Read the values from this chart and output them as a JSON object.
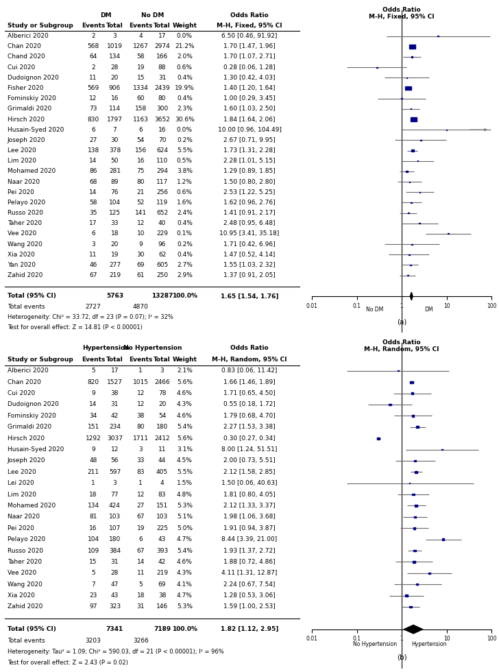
{
  "panel_a": {
    "col_headers_row1": [
      "",
      "DM",
      "",
      "No DM",
      "",
      "",
      "Odds Ratio",
      ""
    ],
    "col_headers_row2": [
      "Study or Subgroup",
      "Events",
      "Total",
      "Events",
      "Total",
      "Weight",
      "M-H, Fixed, 95% CI",
      ""
    ],
    "right_header": "Odds Ratio\nM-H, Fixed, 95% CI",
    "studies": [
      {
        "name": "Alberici 2020",
        "e1": "2",
        "n1": "3",
        "e2": "4",
        "n2": "17",
        "weight": "0.0%",
        "or": 6.5,
        "ci_lo": 0.46,
        "ci_hi": 91.92,
        "ci_str": "6.50 [0.46, 91.92]"
      },
      {
        "name": "Chan 2020",
        "e1": "568",
        "n1": "1019",
        "e2": "1267",
        "n2": "2974",
        "weight": "21.2%",
        "or": 1.7,
        "ci_lo": 1.47,
        "ci_hi": 1.96,
        "ci_str": "1.70 [1.47, 1.96]"
      },
      {
        "name": "Chand 2020",
        "e1": "64",
        "n1": "134",
        "e2": "58",
        "n2": "166",
        "weight": "2.0%",
        "or": 1.7,
        "ci_lo": 1.07,
        "ci_hi": 2.71,
        "ci_str": "1.70 [1.07, 2.71]"
      },
      {
        "name": "Cui 2020",
        "e1": "2",
        "n1": "28",
        "e2": "19",
        "n2": "88",
        "weight": "0.6%",
        "or": 0.28,
        "ci_lo": 0.06,
        "ci_hi": 1.28,
        "ci_str": "0.28 [0.06, 1.28]"
      },
      {
        "name": "Dudoignon 2020",
        "e1": "11",
        "n1": "20",
        "e2": "15",
        "n2": "31",
        "weight": "0.4%",
        "or": 1.3,
        "ci_lo": 0.42,
        "ci_hi": 4.03,
        "ci_str": "1.30 [0.42, 4.03]"
      },
      {
        "name": "Fisher 2020",
        "e1": "569",
        "n1": "906",
        "e2": "1334",
        "n2": "2439",
        "weight": "19.9%",
        "or": 1.4,
        "ci_lo": 1.2,
        "ci_hi": 1.64,
        "ci_str": "1.40 [1.20, 1.64]"
      },
      {
        "name": "Fominskiy 2020",
        "e1": "12",
        "n1": "16",
        "e2": "60",
        "n2": "80",
        "weight": "0.4%",
        "or": 1.0,
        "ci_lo": 0.29,
        "ci_hi": 3.45,
        "ci_str": "1.00 [0.29, 3.45]"
      },
      {
        "name": "Grimaldi 2020",
        "e1": "73",
        "n1": "114",
        "e2": "158",
        "n2": "300",
        "weight": "2.3%",
        "or": 1.6,
        "ci_lo": 1.03,
        "ci_hi": 2.5,
        "ci_str": "1.60 [1.03, 2.50]"
      },
      {
        "name": "Hirsch 2020",
        "e1": "830",
        "n1": "1797",
        "e2": "1163",
        "n2": "3652",
        "weight": "30.6%",
        "or": 1.84,
        "ci_lo": 1.64,
        "ci_hi": 2.06,
        "ci_str": "1.84 [1.64, 2.06]"
      },
      {
        "name": "Husain-Syed 2020",
        "e1": "6",
        "n1": "7",
        "e2": "6",
        "n2": "16",
        "weight": "0.0%",
        "or": 10.0,
        "ci_lo": 0.96,
        "ci_hi": 104.49,
        "ci_str": "10.00 [0.96, 104.49]"
      },
      {
        "name": "Joseph 2020",
        "e1": "27",
        "n1": "30",
        "e2": "54",
        "n2": "70",
        "weight": "0.2%",
        "or": 2.67,
        "ci_lo": 0.71,
        "ci_hi": 9.95,
        "ci_str": "2.67 [0.71, 9.95]"
      },
      {
        "name": "Lee 2020",
        "e1": "138",
        "n1": "378",
        "e2": "156",
        "n2": "624",
        "weight": "5.5%",
        "or": 1.73,
        "ci_lo": 1.31,
        "ci_hi": 2.28,
        "ci_str": "1.73 [1.31, 2.28]"
      },
      {
        "name": "Lim 2020",
        "e1": "14",
        "n1": "50",
        "e2": "16",
        "n2": "110",
        "weight": "0.5%",
        "or": 2.28,
        "ci_lo": 1.01,
        "ci_hi": 5.15,
        "ci_str": "2.28 [1.01, 5.15]"
      },
      {
        "name": "Mohamed 2020",
        "e1": "86",
        "n1": "281",
        "e2": "75",
        "n2": "294",
        "weight": "3.8%",
        "or": 1.29,
        "ci_lo": 0.89,
        "ci_hi": 1.85,
        "ci_str": "1.29 [0.89, 1.85]"
      },
      {
        "name": "Naar 2020",
        "e1": "68",
        "n1": "89",
        "e2": "80",
        "n2": "117",
        "weight": "1.2%",
        "or": 1.5,
        "ci_lo": 0.8,
        "ci_hi": 2.8,
        "ci_str": "1.50 [0.80, 2.80]"
      },
      {
        "name": "Pei 2020",
        "e1": "14",
        "n1": "76",
        "e2": "21",
        "n2": "256",
        "weight": "0.6%",
        "or": 2.53,
        "ci_lo": 1.22,
        "ci_hi": 5.25,
        "ci_str": "2.53 [1.22, 5.25]"
      },
      {
        "name": "Pelayo 2020",
        "e1": "58",
        "n1": "104",
        "e2": "52",
        "n2": "119",
        "weight": "1.6%",
        "or": 1.62,
        "ci_lo": 0.96,
        "ci_hi": 2.76,
        "ci_str": "1.62 [0.96, 2.76]"
      },
      {
        "name": "Russo 2020",
        "e1": "35",
        "n1": "125",
        "e2": "141",
        "n2": "652",
        "weight": "2.4%",
        "or": 1.41,
        "ci_lo": 0.91,
        "ci_hi": 2.17,
        "ci_str": "1.41 [0.91, 2.17]"
      },
      {
        "name": "Taher 2020",
        "e1": "17",
        "n1": "33",
        "e2": "12",
        "n2": "40",
        "weight": "0.4%",
        "or": 2.48,
        "ci_lo": 0.95,
        "ci_hi": 6.48,
        "ci_str": "2.48 [0.95, 6.48]"
      },
      {
        "name": "Vee 2020",
        "e1": "6",
        "n1": "18",
        "e2": "10",
        "n2": "229",
        "weight": "0.1%",
        "or": 10.95,
        "ci_lo": 3.41,
        "ci_hi": 35.18,
        "ci_str": "10.95 [3.41, 35.18]"
      },
      {
        "name": "Wang 2020",
        "e1": "3",
        "n1": "20",
        "e2": "9",
        "n2": "96",
        "weight": "0.2%",
        "or": 1.71,
        "ci_lo": 0.42,
        "ci_hi": 6.96,
        "ci_str": "1.71 [0.42, 6.96]"
      },
      {
        "name": "Xia 2020",
        "e1": "11",
        "n1": "19",
        "e2": "30",
        "n2": "62",
        "weight": "0.4%",
        "or": 1.47,
        "ci_lo": 0.52,
        "ci_hi": 4.14,
        "ci_str": "1.47 [0.52, 4.14]"
      },
      {
        "name": "Yan 2020",
        "e1": "46",
        "n1": "277",
        "e2": "69",
        "n2": "605",
        "weight": "2.7%",
        "or": 1.55,
        "ci_lo": 1.03,
        "ci_hi": 2.32,
        "ci_str": "1.55 [1.03, 2.32]"
      },
      {
        "name": "Zahid 2020",
        "e1": "67",
        "n1": "219",
        "e2": "61",
        "n2": "250",
        "weight": "2.9%",
        "or": 1.37,
        "ci_lo": 0.91,
        "ci_hi": 2.05,
        "ci_str": "1.37 [0.91, 2.05]"
      }
    ],
    "total": {
      "n1": "5763",
      "n2": "13287",
      "e1": "2727",
      "e2": "4870",
      "weight": "100.0%",
      "or": 1.65,
      "ci_lo": 1.54,
      "ci_hi": 1.76,
      "ci_str": "1.65 [1.54, 1.76]"
    },
    "heterogeneity": "Heterogeneity: Chi² = 33.72, df = 23 (P = 0.07); I² = 32%",
    "overall_effect": "Test for overall effect: Z = 14.81 (P < 0.00001)",
    "xaxis_label_left": "No DM",
    "xaxis_label_right": "DM",
    "group1_label": "DM",
    "group2_label": "No DM",
    "or_label": "Odds Ratio",
    "model_label": "M-H, Fixed, 95% CI",
    "label": "(a)"
  },
  "panel_b": {
    "right_header": "Odds Ratio\nM-H, Random, 95% CI",
    "studies": [
      {
        "name": "Alberici 2020",
        "e1": "5",
        "n1": "17",
        "e2": "1",
        "n2": "3",
        "weight": "2.1%",
        "or": 0.83,
        "ci_lo": 0.06,
        "ci_hi": 11.42,
        "ci_str": "0.83 [0.06, 11.42]"
      },
      {
        "name": "Chan 2020",
        "e1": "820",
        "n1": "1527",
        "e2": "1015",
        "n2": "2466",
        "weight": "5.6%",
        "or": 1.66,
        "ci_lo": 1.46,
        "ci_hi": 1.89,
        "ci_str": "1.66 [1.46, 1.89]"
      },
      {
        "name": "Cui 2020",
        "e1": "9",
        "n1": "38",
        "e2": "12",
        "n2": "78",
        "weight": "4.6%",
        "or": 1.71,
        "ci_lo": 0.65,
        "ci_hi": 4.5,
        "ci_str": "1.71 [0.65, 4.50]"
      },
      {
        "name": "Dudoignon 2020",
        "e1": "14",
        "n1": "31",
        "e2": "12",
        "n2": "20",
        "weight": "4.3%",
        "or": 0.55,
        "ci_lo": 0.18,
        "ci_hi": 1.72,
        "ci_str": "0.55 [0.18, 1.72]"
      },
      {
        "name": "Fominskiy 2020",
        "e1": "34",
        "n1": "42",
        "e2": "38",
        "n2": "54",
        "weight": "4.6%",
        "or": 1.79,
        "ci_lo": 0.68,
        "ci_hi": 4.7,
        "ci_str": "1.79 [0.68, 4.70]"
      },
      {
        "name": "Grimaldi 2020",
        "e1": "151",
        "n1": "234",
        "e2": "80",
        "n2": "180",
        "weight": "5.4%",
        "or": 2.27,
        "ci_lo": 1.53,
        "ci_hi": 3.38,
        "ci_str": "2.27 [1.53, 3.38]"
      },
      {
        "name": "Hirsch 2020",
        "e1": "1292",
        "n1": "3037",
        "e2": "1711",
        "n2": "2412",
        "weight": "5.6%",
        "or": 0.3,
        "ci_lo": 0.27,
        "ci_hi": 0.34,
        "ci_str": "0.30 [0.27, 0.34]"
      },
      {
        "name": "Husain-Syed 2020",
        "e1": "9",
        "n1": "12",
        "e2": "3",
        "n2": "11",
        "weight": "3.1%",
        "or": 8.0,
        "ci_lo": 1.24,
        "ci_hi": 51.51,
        "ci_str": "8.00 [1.24, 51.51]"
      },
      {
        "name": "Joseph 2020",
        "e1": "48",
        "n1": "56",
        "e2": "33",
        "n2": "44",
        "weight": "4.5%",
        "or": 2.0,
        "ci_lo": 0.73,
        "ci_hi": 5.51,
        "ci_str": "2.00 [0.73, 5.51]"
      },
      {
        "name": "Lee 2020",
        "e1": "211",
        "n1": "597",
        "e2": "83",
        "n2": "405",
        "weight": "5.5%",
        "or": 2.12,
        "ci_lo": 1.58,
        "ci_hi": 2.85,
        "ci_str": "2.12 [1.58, 2.85]"
      },
      {
        "name": "Lei 2020",
        "e1": "1",
        "n1": "3",
        "e2": "1",
        "n2": "4",
        "weight": "1.5%",
        "or": 1.5,
        "ci_lo": 0.06,
        "ci_hi": 40.63,
        "ci_str": "1.50 [0.06, 40.63]"
      },
      {
        "name": "Lim 2020",
        "e1": "18",
        "n1": "77",
        "e2": "12",
        "n2": "83",
        "weight": "4.8%",
        "or": 1.81,
        "ci_lo": 0.8,
        "ci_hi": 4.05,
        "ci_str": "1.81 [0.80, 4.05]"
      },
      {
        "name": "Mohamed 2020",
        "e1": "134",
        "n1": "424",
        "e2": "27",
        "n2": "151",
        "weight": "5.3%",
        "or": 2.12,
        "ci_lo": 1.33,
        "ci_hi": 3.37,
        "ci_str": "2.12 [1.33, 3.37]"
      },
      {
        "name": "Naar 2020",
        "e1": "81",
        "n1": "103",
        "e2": "67",
        "n2": "103",
        "weight": "5.1%",
        "or": 1.98,
        "ci_lo": 1.06,
        "ci_hi": 3.68,
        "ci_str": "1.98 [1.06, 3.68]"
      },
      {
        "name": "Pei 2020",
        "e1": "16",
        "n1": "107",
        "e2": "19",
        "n2": "225",
        "weight": "5.0%",
        "or": 1.91,
        "ci_lo": 0.94,
        "ci_hi": 3.87,
        "ci_str": "1.91 [0.94, 3.87]"
      },
      {
        "name": "Pelayo 2020",
        "e1": "104",
        "n1": "180",
        "e2": "6",
        "n2": "43",
        "weight": "4.7%",
        "or": 8.44,
        "ci_lo": 3.39,
        "ci_hi": 21.0,
        "ci_str": "8.44 [3.39, 21.00]"
      },
      {
        "name": "Russo 2020",
        "e1": "109",
        "n1": "384",
        "e2": "67",
        "n2": "393",
        "weight": "5.4%",
        "or": 1.93,
        "ci_lo": 1.37,
        "ci_hi": 2.72,
        "ci_str": "1.93 [1.37, 2.72]"
      },
      {
        "name": "Taher 2020",
        "e1": "15",
        "n1": "31",
        "e2": "14",
        "n2": "42",
        "weight": "4.6%",
        "or": 1.88,
        "ci_lo": 0.72,
        "ci_hi": 4.86,
        "ci_str": "1.88 [0.72, 4.86]"
      },
      {
        "name": "Vee 2020",
        "e1": "5",
        "n1": "28",
        "e2": "11",
        "n2": "219",
        "weight": "4.3%",
        "or": 4.11,
        "ci_lo": 1.31,
        "ci_hi": 12.87,
        "ci_str": "4.11 [1.31, 12.87]"
      },
      {
        "name": "Wang 2020",
        "e1": "7",
        "n1": "47",
        "e2": "5",
        "n2": "69",
        "weight": "4.1%",
        "or": 2.24,
        "ci_lo": 0.67,
        "ci_hi": 7.54,
        "ci_str": "2.24 [0.67, 7.54]"
      },
      {
        "name": "Xia 2020",
        "e1": "23",
        "n1": "43",
        "e2": "18",
        "n2": "38",
        "weight": "4.7%",
        "or": 1.28,
        "ci_lo": 0.53,
        "ci_hi": 3.06,
        "ci_str": "1.28 [0.53, 3.06]"
      },
      {
        "name": "Zahid 2020",
        "e1": "97",
        "n1": "323",
        "e2": "31",
        "n2": "146",
        "weight": "5.3%",
        "or": 1.59,
        "ci_lo": 1.0,
        "ci_hi": 2.53,
        "ci_str": "1.59 [1.00, 2.53]"
      }
    ],
    "total": {
      "n1": "7341",
      "n2": "7189",
      "e1": "3203",
      "e2": "3266",
      "weight": "100.0%",
      "or": 1.82,
      "ci_lo": 1.12,
      "ci_hi": 2.95,
      "ci_str": "1.82 [1.12, 2.95]"
    },
    "heterogeneity": "Heterogeneity: Tau² = 1.09; Chi² = 590.03, df = 21 (P < 0.00001); I² = 96%",
    "overall_effect": "Test for overall effect: Z = 2.43 (P = 0.02)",
    "xaxis_label_left": "No Hypertension",
    "xaxis_label_right": "Hypertension",
    "group1_label": "Hypertension",
    "group2_label": "No Hypertension",
    "or_label": "Odds Ratio",
    "model_label": "M-H, Random, 95% CI",
    "label": "(b)"
  },
  "font_size": 6.5,
  "sq_color": "#00008B",
  "line_color": "#696969",
  "ci_str_col_label": "Odds Ratio"
}
